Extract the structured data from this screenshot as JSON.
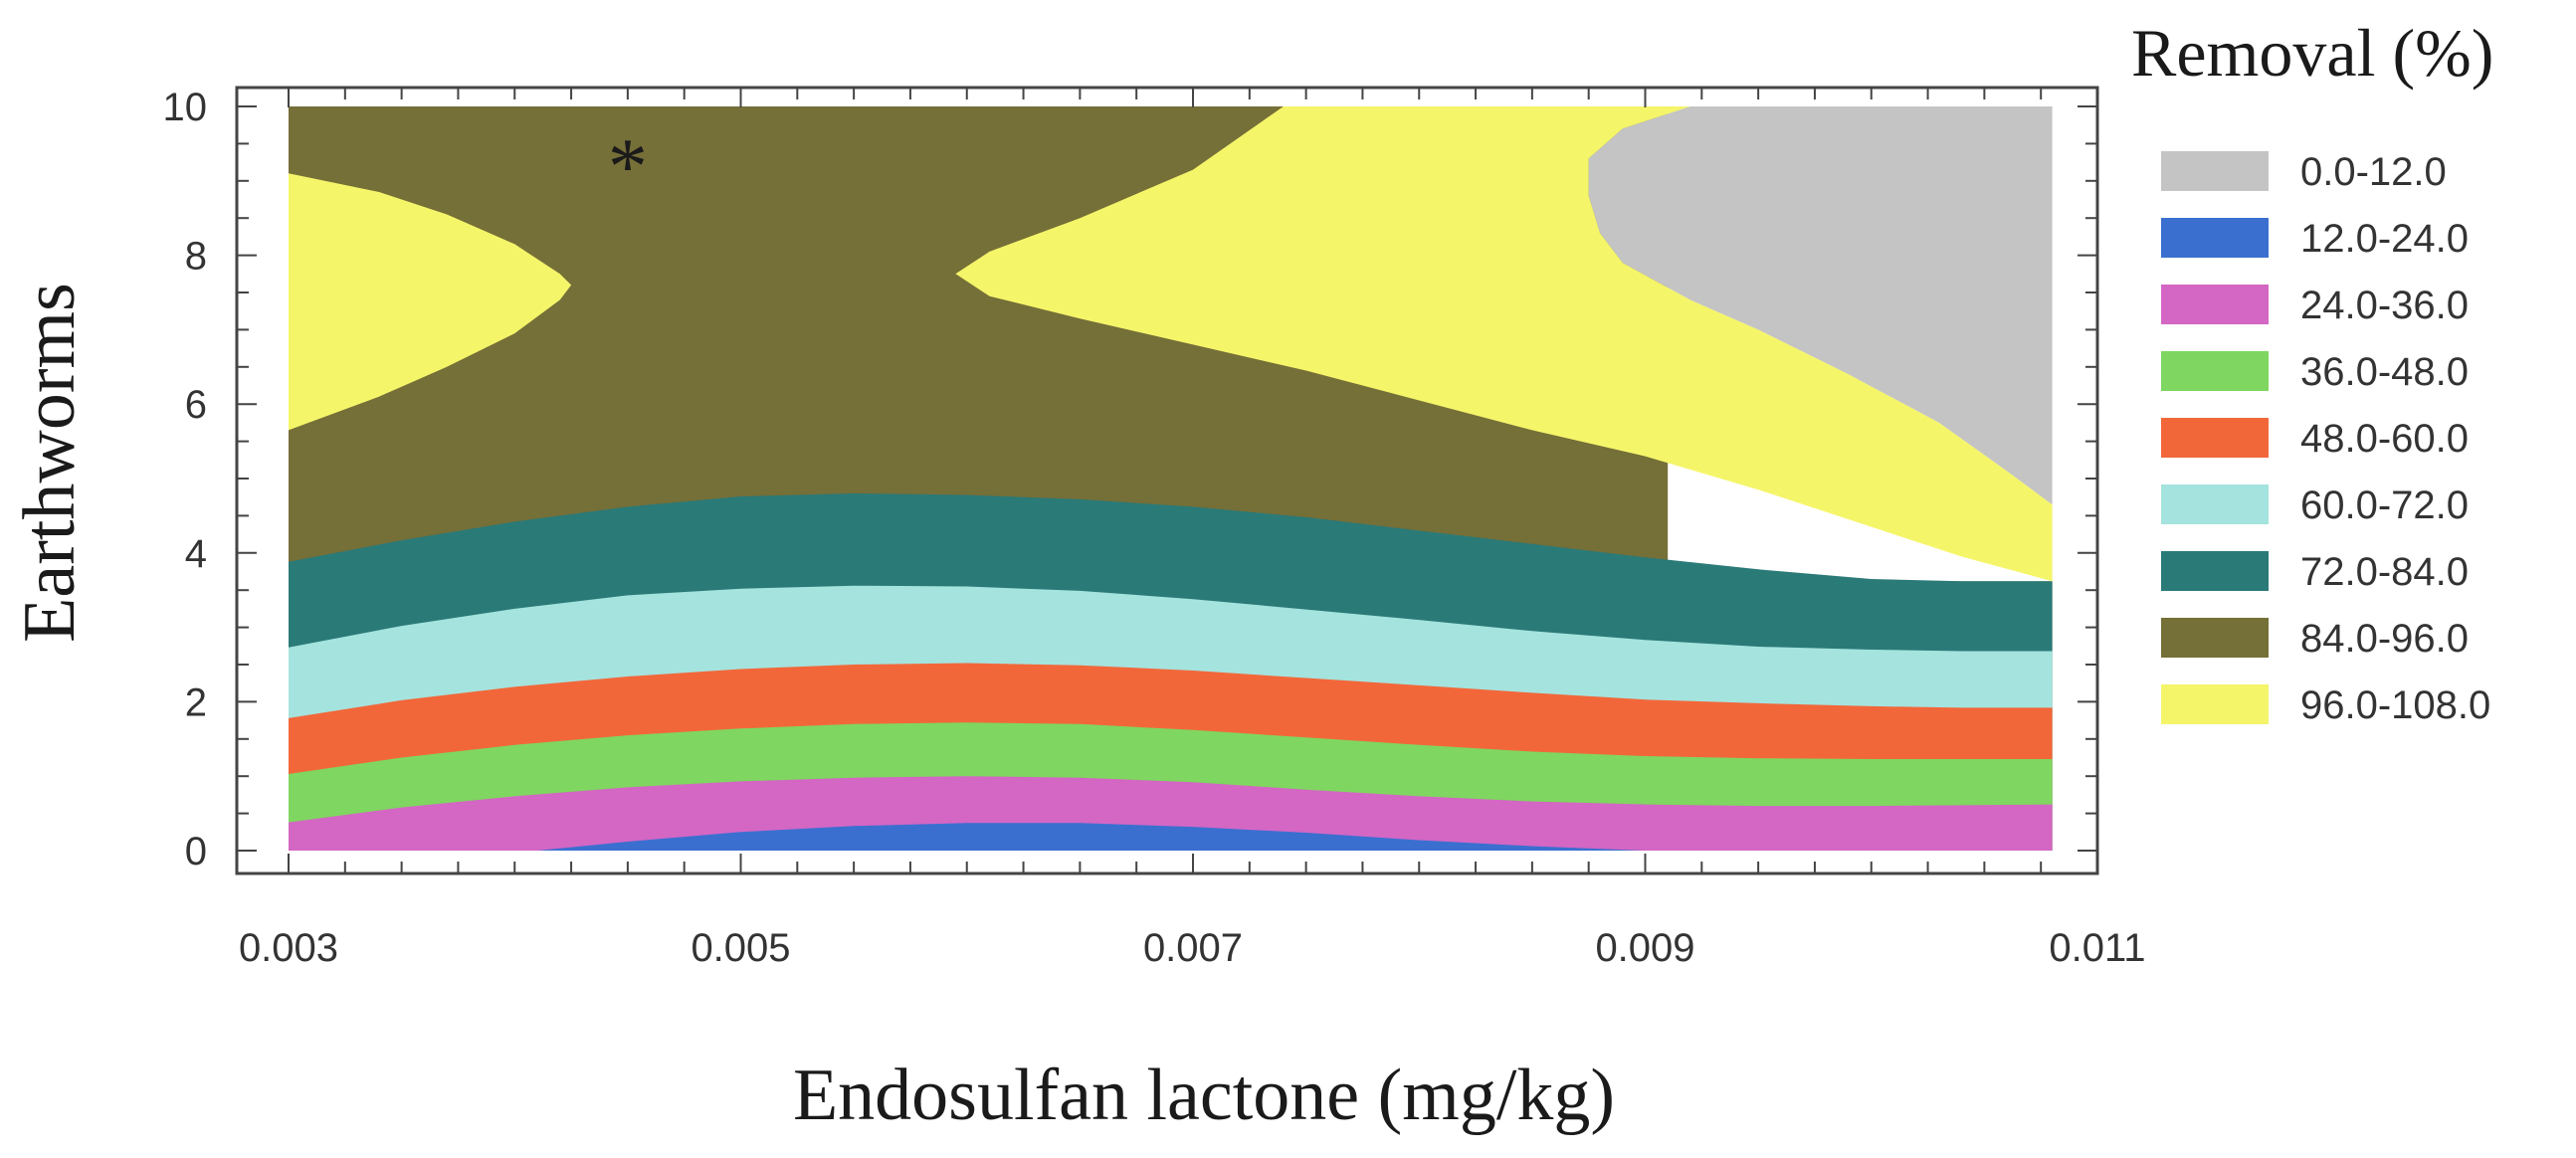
{
  "chart_data": {
    "type": "contour",
    "xlabel": "Endosulfan lactone (mg/kg)",
    "ylabel": "Earthworms",
    "xlim": [
      0.003,
      0.011
    ],
    "ylim": [
      0,
      10
    ],
    "x_ticks": [
      "0.003",
      "0.005",
      "0.007",
      "0.009",
      "0.011"
    ],
    "y_ticks": [
      "0",
      "2",
      "4",
      "6",
      "8",
      "10"
    ],
    "legend_title": "Removal (%)",
    "legend_position": "right",
    "marker": {
      "symbol": "*",
      "x": 0.0045,
      "y": 9.4
    },
    "levels": [
      {
        "label": "0.0-12.0",
        "color": "#c4c4c4"
      },
      {
        "label": "12.0-24.0",
        "color": "#3a6fd0"
      },
      {
        "label": "24.0-36.0",
        "color": "#d466c4"
      },
      {
        "label": "36.0-48.0",
        "color": "#7fd660"
      },
      {
        "label": "48.0-60.0",
        "color": "#f2673a"
      },
      {
        "label": "60.0-72.0",
        "color": "#a5e3de"
      },
      {
        "label": "72.0-84.0",
        "color": "#2a7a78"
      },
      {
        "label": "84.0-96.0",
        "color": "#756f38"
      },
      {
        "label": "96.0-108.0",
        "color": "#f5f56a"
      }
    ],
    "regions": [
      {
        "level": "84.0-96.0",
        "boundary": [
          [
            0.003,
            10
          ],
          [
            0.0091,
            10
          ],
          [
            0.0091,
            3.62
          ],
          [
            0.0108,
            3.62
          ],
          [
            0.0108,
            0
          ],
          [
            0.003,
            0
          ]
        ]
      },
      {
        "level": "72.0-84.0",
        "boundary": [
          [
            0.003,
            3.88
          ],
          [
            0.0035,
            4.17
          ],
          [
            0.004,
            4.42
          ],
          [
            0.0045,
            4.62
          ],
          [
            0.005,
            4.76
          ],
          [
            0.0055,
            4.8
          ],
          [
            0.006,
            4.78
          ],
          [
            0.0065,
            4.72
          ],
          [
            0.007,
            4.62
          ],
          [
            0.0075,
            4.48
          ],
          [
            0.008,
            4.3
          ],
          [
            0.0085,
            4.12
          ],
          [
            0.009,
            3.94
          ],
          [
            0.0095,
            3.78
          ],
          [
            0.01,
            3.65
          ],
          [
            0.0104,
            3.62
          ],
          [
            0.0108,
            3.62
          ],
          [
            0.0108,
            0
          ],
          [
            0.003,
            0
          ]
        ]
      },
      {
        "level": "60.0-72.0",
        "boundary": [
          [
            0.003,
            2.73
          ],
          [
            0.0035,
            3.02
          ],
          [
            0.004,
            3.25
          ],
          [
            0.0045,
            3.43
          ],
          [
            0.005,
            3.52
          ],
          [
            0.0055,
            3.56
          ],
          [
            0.006,
            3.55
          ],
          [
            0.0065,
            3.49
          ],
          [
            0.007,
            3.38
          ],
          [
            0.0075,
            3.24
          ],
          [
            0.008,
            3.1
          ],
          [
            0.0085,
            2.95
          ],
          [
            0.009,
            2.83
          ],
          [
            0.0095,
            2.74
          ],
          [
            0.01,
            2.7
          ],
          [
            0.0104,
            2.68
          ],
          [
            0.0108,
            2.68
          ],
          [
            0.0108,
            0
          ],
          [
            0.003,
            0
          ]
        ]
      },
      {
        "level": "48.0-60.0",
        "boundary": [
          [
            0.003,
            1.78
          ],
          [
            0.0035,
            2.02
          ],
          [
            0.004,
            2.2
          ],
          [
            0.0045,
            2.34
          ],
          [
            0.005,
            2.44
          ],
          [
            0.0055,
            2.5
          ],
          [
            0.006,
            2.52
          ],
          [
            0.0065,
            2.49
          ],
          [
            0.007,
            2.42
          ],
          [
            0.0075,
            2.32
          ],
          [
            0.008,
            2.22
          ],
          [
            0.0085,
            2.12
          ],
          [
            0.009,
            2.03
          ],
          [
            0.0095,
            1.98
          ],
          [
            0.01,
            1.94
          ],
          [
            0.0104,
            1.92
          ],
          [
            0.0108,
            1.92
          ],
          [
            0.0108,
            0
          ],
          [
            0.003,
            0
          ]
        ]
      },
      {
        "level": "36.0-48.0",
        "boundary": [
          [
            0.003,
            1.03
          ],
          [
            0.0035,
            1.25
          ],
          [
            0.004,
            1.42
          ],
          [
            0.0045,
            1.55
          ],
          [
            0.005,
            1.64
          ],
          [
            0.0055,
            1.7
          ],
          [
            0.006,
            1.72
          ],
          [
            0.0065,
            1.7
          ],
          [
            0.007,
            1.62
          ],
          [
            0.0075,
            1.52
          ],
          [
            0.008,
            1.42
          ],
          [
            0.0085,
            1.33
          ],
          [
            0.009,
            1.27
          ],
          [
            0.0095,
            1.24
          ],
          [
            0.01,
            1.23
          ],
          [
            0.0104,
            1.23
          ],
          [
            0.0108,
            1.23
          ],
          [
            0.0108,
            0
          ],
          [
            0.003,
            0
          ]
        ]
      },
      {
        "level": "24.0-36.0",
        "boundary": [
          [
            0.003,
            0.38
          ],
          [
            0.0035,
            0.58
          ],
          [
            0.004,
            0.73
          ],
          [
            0.0045,
            0.85
          ],
          [
            0.005,
            0.93
          ],
          [
            0.0055,
            0.98
          ],
          [
            0.006,
            1.0
          ],
          [
            0.0065,
            0.98
          ],
          [
            0.007,
            0.92
          ],
          [
            0.0075,
            0.82
          ],
          [
            0.008,
            0.73
          ],
          [
            0.0085,
            0.66
          ],
          [
            0.009,
            0.62
          ],
          [
            0.0095,
            0.6
          ],
          [
            0.01,
            0.6
          ],
          [
            0.0104,
            0.61
          ],
          [
            0.0108,
            0.62
          ],
          [
            0.0108,
            0
          ],
          [
            0.003,
            0
          ]
        ]
      },
      {
        "level": "12.0-24.0",
        "boundary": [
          [
            0.0041,
            0
          ],
          [
            0.0045,
            0.12
          ],
          [
            0.005,
            0.25
          ],
          [
            0.0055,
            0.33
          ],
          [
            0.006,
            0.37
          ],
          [
            0.0065,
            0.37
          ],
          [
            0.007,
            0.32
          ],
          [
            0.0075,
            0.24
          ],
          [
            0.008,
            0.14
          ],
          [
            0.0085,
            0.06
          ],
          [
            0.009,
            0
          ]
        ]
      },
      {
        "level": "96.0-108.0",
        "boundary": [
          [
            0.003,
            9.1
          ],
          [
            0.0034,
            8.85
          ],
          [
            0.0037,
            8.55
          ],
          [
            0.004,
            8.15
          ],
          [
            0.0042,
            7.75
          ],
          [
            0.00425,
            7.6
          ],
          [
            0.0042,
            7.4
          ],
          [
            0.004,
            6.95
          ],
          [
            0.0037,
            6.5
          ],
          [
            0.0034,
            6.1
          ],
          [
            0.003,
            5.65
          ]
        ]
      },
      {
        "level": "96.0-108.0",
        "boundary": [
          [
            0.0074,
            10
          ],
          [
            0.0092,
            10
          ],
          [
            0.0089,
            9.7
          ],
          [
            0.00875,
            9.3
          ],
          [
            0.00875,
            8.8
          ],
          [
            0.0088,
            8.3
          ],
          [
            0.0089,
            7.9
          ],
          [
            0.0092,
            7.4
          ],
          [
            0.0095,
            7.0
          ],
          [
            0.0099,
            6.4
          ],
          [
            0.0103,
            5.75
          ],
          [
            0.0106,
            5.1
          ],
          [
            0.0108,
            4.65
          ],
          [
            0.0108,
            3.62
          ],
          [
            0.0104,
            3.95
          ],
          [
            0.01,
            4.35
          ],
          [
            0.0095,
            4.85
          ],
          [
            0.009,
            5.3
          ],
          [
            0.0085,
            5.65
          ],
          [
            0.008,
            6.05
          ],
          [
            0.0075,
            6.45
          ],
          [
            0.007,
            6.8
          ],
          [
            0.0065,
            7.15
          ],
          [
            0.0061,
            7.45
          ],
          [
            0.00595,
            7.75
          ],
          [
            0.0061,
            8.05
          ],
          [
            0.0065,
            8.5
          ],
          [
            0.007,
            9.15
          ]
        ]
      },
      {
        "level": "0.0-12.0",
        "boundary": [
          [
            0.0092,
            10
          ],
          [
            0.0108,
            10
          ],
          [
            0.0108,
            4.65
          ],
          [
            0.0106,
            5.1
          ],
          [
            0.0103,
            5.75
          ],
          [
            0.0099,
            6.4
          ],
          [
            0.0095,
            7.0
          ],
          [
            0.0092,
            7.4
          ],
          [
            0.0089,
            7.9
          ],
          [
            0.0088,
            8.3
          ],
          [
            0.00875,
            8.8
          ],
          [
            0.00875,
            9.3
          ],
          [
            0.0089,
            9.7
          ]
        ]
      }
    ]
  }
}
